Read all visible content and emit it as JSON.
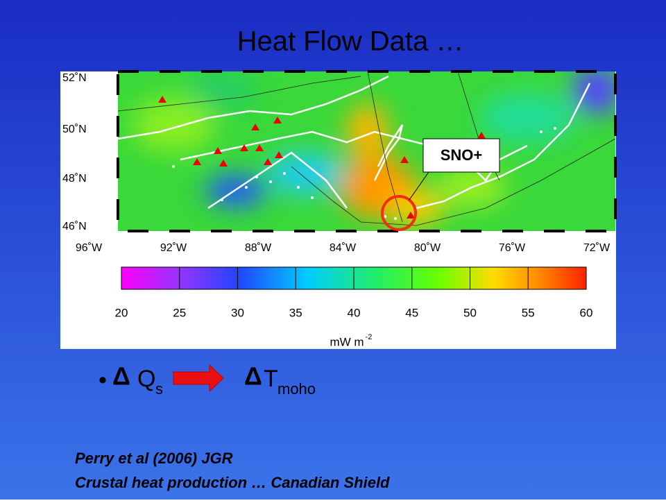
{
  "title": "Heat Flow Data …",
  "map": {
    "lat_labels": [
      "52˚N",
      "50˚N",
      "48˚N",
      "46˚N"
    ],
    "lon_labels": [
      "96˚W",
      "92˚W",
      "88˚W",
      "84˚W",
      "80˚W",
      "76˚W",
      "72˚W"
    ],
    "callout": "SNO+"
  },
  "colorbar": {
    "ticks": [
      20,
      25,
      30,
      35,
      40,
      45,
      50,
      55,
      60
    ],
    "unit": "mW m",
    "unit_exp": "-2"
  },
  "formula": {
    "bullet": "•",
    "delta": "Δ",
    "q": "Q",
    "q_sub": "s",
    "t": "T",
    "t_sub": "moho"
  },
  "citation": [
    "Perry et al (2006) JGR",
    "Crustal heat production … Canadian Shield"
  ]
}
